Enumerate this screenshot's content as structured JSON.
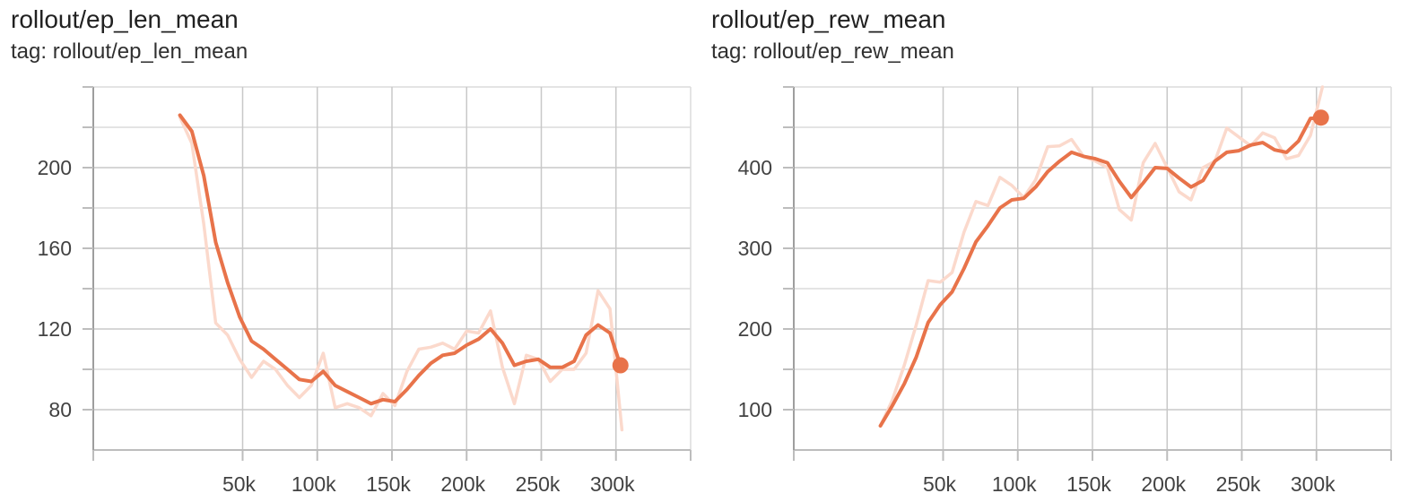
{
  "chart_data": [
    {
      "type": "line",
      "title": "rollout/ep_len_mean",
      "subtitle": "tag: rollout/ep_len_mean",
      "xlabel": "",
      "ylabel": "",
      "xlim": [
        -50000,
        350000
      ],
      "ylim": [
        60,
        240
      ],
      "xticks": [
        50000,
        100000,
        150000,
        200000,
        250000,
        300000
      ],
      "xtick_labels": [
        "50k",
        "100k",
        "150k",
        "200k",
        "250k",
        "300k"
      ],
      "yticks": [
        80,
        120,
        160,
        200
      ],
      "ytick_labels": [
        "80",
        "120",
        "160",
        "200"
      ],
      "grid": true,
      "colors": {
        "smoothed": "#e8734a",
        "raw": "#fbd9cc"
      },
      "series": [
        {
          "role": "raw",
          "x": [
            8000,
            16000,
            24000,
            32000,
            40000,
            48000,
            56000,
            64000,
            72000,
            80000,
            88000,
            96000,
            104000,
            112000,
            120000,
            128000,
            136000,
            144000,
            152000,
            160000,
            168000,
            176000,
            184000,
            192000,
            200000,
            208000,
            216000,
            224000,
            232000,
            240000,
            248000,
            256000,
            264000,
            272000,
            280000,
            288000,
            296000,
            304000
          ],
          "y": [
            225,
            212,
            172,
            123,
            117,
            105,
            96,
            104,
            100,
            92,
            86,
            92,
            108,
            81,
            83,
            81,
            77,
            88,
            82,
            99,
            110,
            111,
            113,
            110,
            119,
            118,
            129,
            101,
            83,
            107,
            105,
            94,
            100,
            100,
            108,
            139,
            130,
            70
          ]
        },
        {
          "role": "smoothed",
          "x": [
            8000,
            16000,
            24000,
            32000,
            40000,
            48000,
            56000,
            64000,
            72000,
            80000,
            88000,
            96000,
            104000,
            112000,
            120000,
            128000,
            136000,
            144000,
            152000,
            160000,
            168000,
            176000,
            184000,
            192000,
            200000,
            208000,
            216000,
            224000,
            232000,
            240000,
            248000,
            256000,
            264000,
            272000,
            280000,
            288000,
            296000,
            303000
          ],
          "y": [
            226,
            218,
            196,
            163,
            143,
            126,
            114,
            110,
            105,
            100,
            95,
            94,
            99,
            92,
            89,
            86,
            83,
            85,
            84,
            90,
            97,
            103,
            107,
            108,
            112,
            115,
            120,
            113,
            102,
            104,
            105,
            101,
            101,
            104,
            117,
            122,
            118,
            102
          ]
        }
      ],
      "last_value_marker": {
        "x": 303000,
        "y": 102
      }
    },
    {
      "type": "line",
      "title": "rollout/ep_rew_mean",
      "subtitle": "tag: rollout/ep_rew_mean",
      "xlabel": "",
      "ylabel": "",
      "xlim": [
        -50000,
        350000
      ],
      "ylim": [
        50,
        500
      ],
      "xticks": [
        50000,
        100000,
        150000,
        200000,
        250000,
        300000
      ],
      "xtick_labels": [
        "50k",
        "100k",
        "150k",
        "200k",
        "250k",
        "300k"
      ],
      "yticks": [
        100,
        200,
        300,
        400
      ],
      "ytick_labels": [
        "100",
        "200",
        "300",
        "400"
      ],
      "grid": true,
      "colors": {
        "smoothed": "#e8734a",
        "raw": "#fbd9cc"
      },
      "series": [
        {
          "role": "raw",
          "x": [
            8000,
            16000,
            24000,
            32000,
            40000,
            48000,
            56000,
            64000,
            72000,
            80000,
            88000,
            96000,
            104000,
            112000,
            120000,
            128000,
            136000,
            144000,
            152000,
            160000,
            168000,
            176000,
            184000,
            192000,
            200000,
            208000,
            216000,
            224000,
            232000,
            240000,
            248000,
            256000,
            264000,
            272000,
            280000,
            288000,
            296000,
            304000
          ],
          "y": [
            80,
            112,
            155,
            205,
            260,
            258,
            270,
            320,
            358,
            353,
            388,
            378,
            363,
            385,
            426,
            427,
            435,
            414,
            408,
            400,
            348,
            335,
            406,
            430,
            400,
            370,
            360,
            400,
            408,
            449,
            438,
            427,
            443,
            437,
            411,
            415,
            440,
            500
          ]
        },
        {
          "role": "smoothed",
          "x": [
            8000,
            16000,
            24000,
            32000,
            40000,
            48000,
            56000,
            64000,
            72000,
            80000,
            88000,
            96000,
            104000,
            112000,
            120000,
            128000,
            136000,
            144000,
            152000,
            160000,
            168000,
            176000,
            184000,
            192000,
            200000,
            208000,
            216000,
            224000,
            232000,
            240000,
            248000,
            256000,
            264000,
            272000,
            280000,
            288000,
            296000,
            303000
          ],
          "y": [
            80,
            105,
            132,
            165,
            208,
            230,
            246,
            275,
            308,
            328,
            350,
            360,
            362,
            376,
            395,
            408,
            419,
            414,
            411,
            406,
            383,
            363,
            381,
            400,
            399,
            387,
            376,
            384,
            408,
            419,
            421,
            428,
            431,
            422,
            419,
            433,
            461,
            462
          ]
        }
      ],
      "last_value_marker": {
        "x": 303000,
        "y": 462
      }
    }
  ]
}
